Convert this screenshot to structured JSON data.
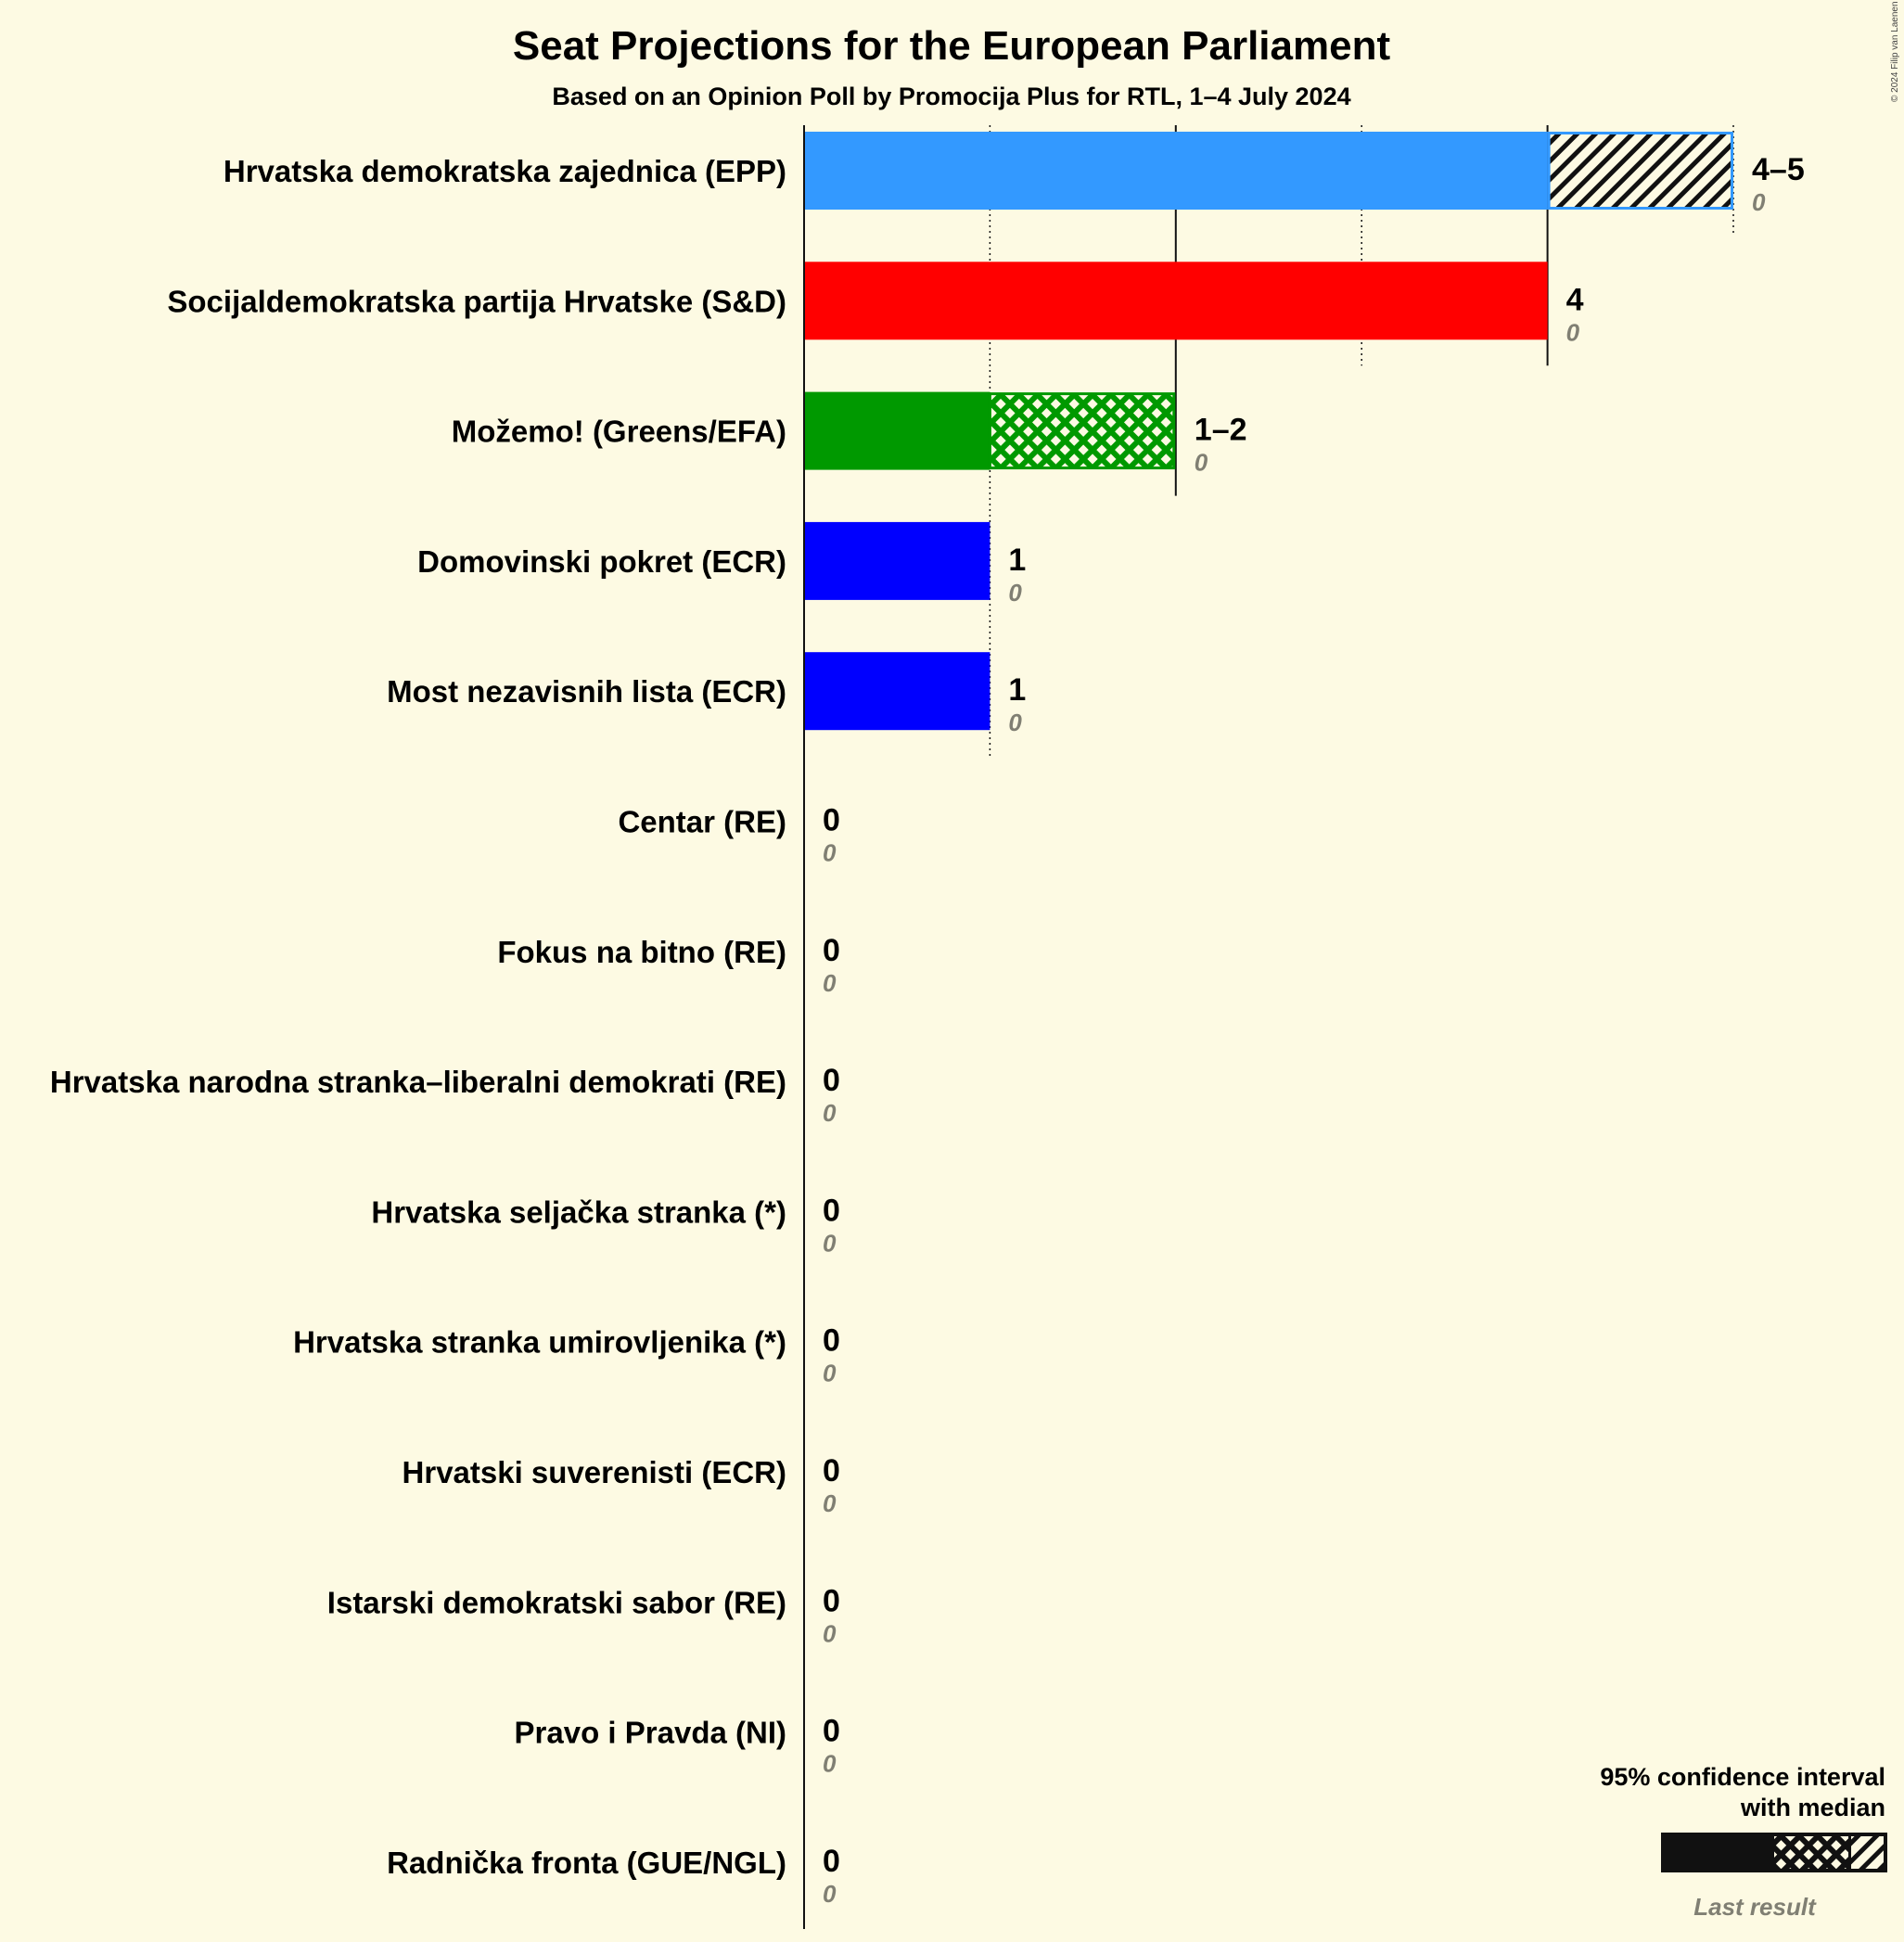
{
  "chart_data": {
    "type": "bar",
    "orientation": "horizontal",
    "title": "Seat Projections for the European Parliament",
    "subtitle": "Based on an Opinion Poll by Promocija Plus for RTL, 1–4 July 2024",
    "copyright": "© 2024 Filip van Laenen",
    "xlim": [
      0,
      5
    ],
    "parties": [
      {
        "name": "Hrvatska demokratska zajednica (EPP)",
        "low": 4,
        "median": 4,
        "high": 5,
        "label": "4–5",
        "last": 0,
        "last_label": "0",
        "color": "#3399ff"
      },
      {
        "name": "Socijaldemokratska partija Hrvatske (S&D)",
        "low": 4,
        "median": 4,
        "high": 4,
        "label": "4",
        "last": 0,
        "last_label": "0",
        "color": "#ff0000"
      },
      {
        "name": "Možemo! (Greens/EFA)",
        "low": 1,
        "median": 2,
        "high": 2,
        "label": "1–2",
        "last": 0,
        "last_label": "0",
        "color": "#009900"
      },
      {
        "name": "Domovinski pokret (ECR)",
        "low": 1,
        "median": 1,
        "high": 1,
        "label": "1",
        "last": 0,
        "last_label": "0",
        "color": "#0000ff"
      },
      {
        "name": "Most nezavisnih lista (ECR)",
        "low": 1,
        "median": 1,
        "high": 1,
        "label": "1",
        "last": 0,
        "last_label": "0",
        "color": "#0000ff"
      },
      {
        "name": "Centar (RE)",
        "low": 0,
        "median": 0,
        "high": 0,
        "label": "0",
        "last": 0,
        "last_label": "0",
        "color": "#ffd700"
      },
      {
        "name": "Fokus na bitno (RE)",
        "low": 0,
        "median": 0,
        "high": 0,
        "label": "0",
        "last": 0,
        "last_label": "0",
        "color": "#ffd700"
      },
      {
        "name": "Hrvatska narodna stranka–liberalni demokrati (RE)",
        "low": 0,
        "median": 0,
        "high": 0,
        "label": "0",
        "last": 0,
        "last_label": "0",
        "color": "#ffd700"
      },
      {
        "name": "Hrvatska seljačka stranka (*)",
        "low": 0,
        "median": 0,
        "high": 0,
        "label": "0",
        "last": 0,
        "last_label": "0",
        "color": "#888888"
      },
      {
        "name": "Hrvatska stranka umirovljenika (*)",
        "low": 0,
        "median": 0,
        "high": 0,
        "label": "0",
        "last": 0,
        "last_label": "0",
        "color": "#888888"
      },
      {
        "name": "Hrvatski suverenisti (ECR)",
        "low": 0,
        "median": 0,
        "high": 0,
        "label": "0",
        "last": 0,
        "last_label": "0",
        "color": "#0000ff"
      },
      {
        "name": "Istarski demokratski sabor (RE)",
        "low": 0,
        "median": 0,
        "high": 0,
        "label": "0",
        "last": 0,
        "last_label": "0",
        "color": "#ffd700"
      },
      {
        "name": "Pravo i Pravda (NI)",
        "low": 0,
        "median": 0,
        "high": 0,
        "label": "0",
        "last": 0,
        "last_label": "0",
        "color": "#888888"
      },
      {
        "name": "Radnička fronta (GUE/NGL)",
        "low": 0,
        "median": 0,
        "high": 0,
        "label": "0",
        "last": 0,
        "last_label": "0",
        "color": "#880000"
      }
    ],
    "legend": {
      "line1": "95% confidence interval",
      "line2": "with median",
      "last_result": "Last result",
      "placement": "bottom-right"
    }
  }
}
